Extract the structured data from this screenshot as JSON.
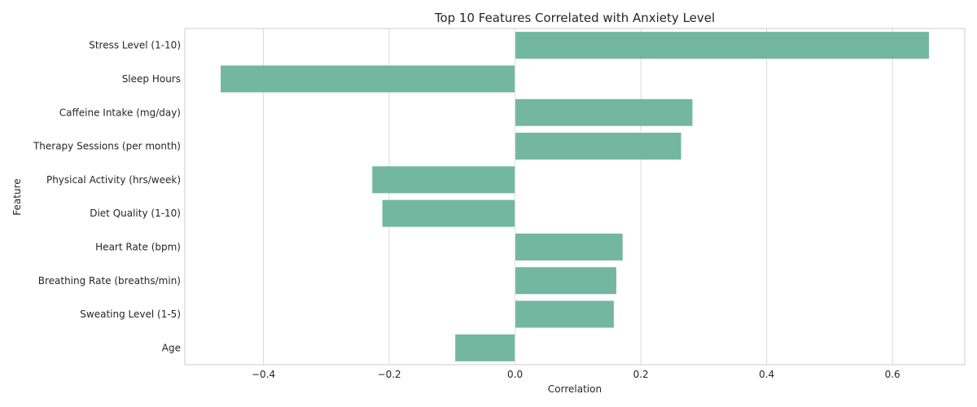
{
  "chart_data": {
    "type": "bar",
    "orientation": "horizontal",
    "title": "Top 10 Features Correlated with Anxiety Level",
    "xlabel": "Correlation",
    "ylabel": "Feature",
    "categories": [
      "Stress Level (1-10)",
      "Sleep Hours",
      "Caffeine Intake (mg/day)",
      "Therapy Sessions (per month)",
      "Physical Activity (hrs/week)",
      "Diet Quality (1-10)",
      "Heart Rate (bpm)",
      "Breathing Rate (breaths/min)",
      "Sweating Level (1-5)",
      "Age"
    ],
    "values": [
      0.658,
      -0.468,
      0.282,
      0.264,
      -0.227,
      -0.211,
      0.171,
      0.161,
      0.157,
      -0.095
    ],
    "xlim": [
      -0.525,
      0.715
    ],
    "xticks": [
      -0.4,
      -0.2,
      0.0,
      0.2,
      0.4,
      0.6
    ],
    "xtick_labels": [
      "−0.4",
      "−0.2",
      "0.0",
      "0.2",
      "0.4",
      "0.6"
    ],
    "grid": true,
    "bar_color": "#73b7a1",
    "grid_color": "#d9d9d9",
    "spine_color": "#cccccc",
    "text_color": "#262626"
  }
}
